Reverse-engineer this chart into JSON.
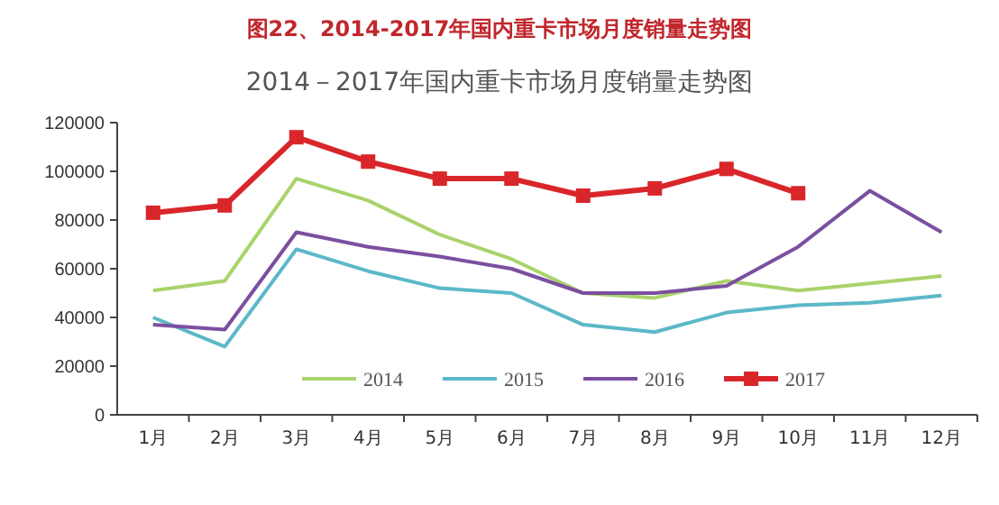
{
  "chart_data": {
    "type": "line",
    "title": "图22、2014-2017年国内重卡市场月度销量走势图",
    "subtitle": "2014－2017年国内重卡市场月度销量走势图",
    "categories": [
      "1月",
      "2月",
      "3月",
      "4月",
      "5月",
      "6月",
      "7月",
      "8月",
      "9月",
      "10月",
      "11月",
      "12月"
    ],
    "ylim": [
      0,
      120000
    ],
    "yticks": [
      0,
      20000,
      40000,
      60000,
      80000,
      100000,
      120000
    ],
    "grid": false,
    "legend": "bottom",
    "line_style": "solid",
    "series": [
      {
        "name": "2014",
        "color": "#a9d36b",
        "marker": "none",
        "values": [
          51000,
          55000,
          97000,
          88000,
          74000,
          64000,
          50000,
          48000,
          55000,
          51000,
          54000,
          57000
        ]
      },
      {
        "name": "2015",
        "color": "#5bb8c8",
        "marker": "none",
        "values": [
          40000,
          28000,
          68000,
          59000,
          52000,
          50000,
          37000,
          34000,
          42000,
          45000,
          46000,
          49000
        ]
      },
      {
        "name": "2016",
        "color": "#7b4fa0",
        "marker": "none",
        "values": [
          37000,
          35000,
          75000,
          69000,
          65000,
          60000,
          50000,
          50000,
          53000,
          69000,
          92000,
          75000
        ]
      },
      {
        "name": "2017",
        "color": "#d9262a",
        "marker": "square",
        "values": [
          83000,
          86000,
          114000,
          104000,
          97000,
          97000,
          90000,
          93000,
          101000,
          91000,
          null,
          null
        ]
      }
    ]
  }
}
